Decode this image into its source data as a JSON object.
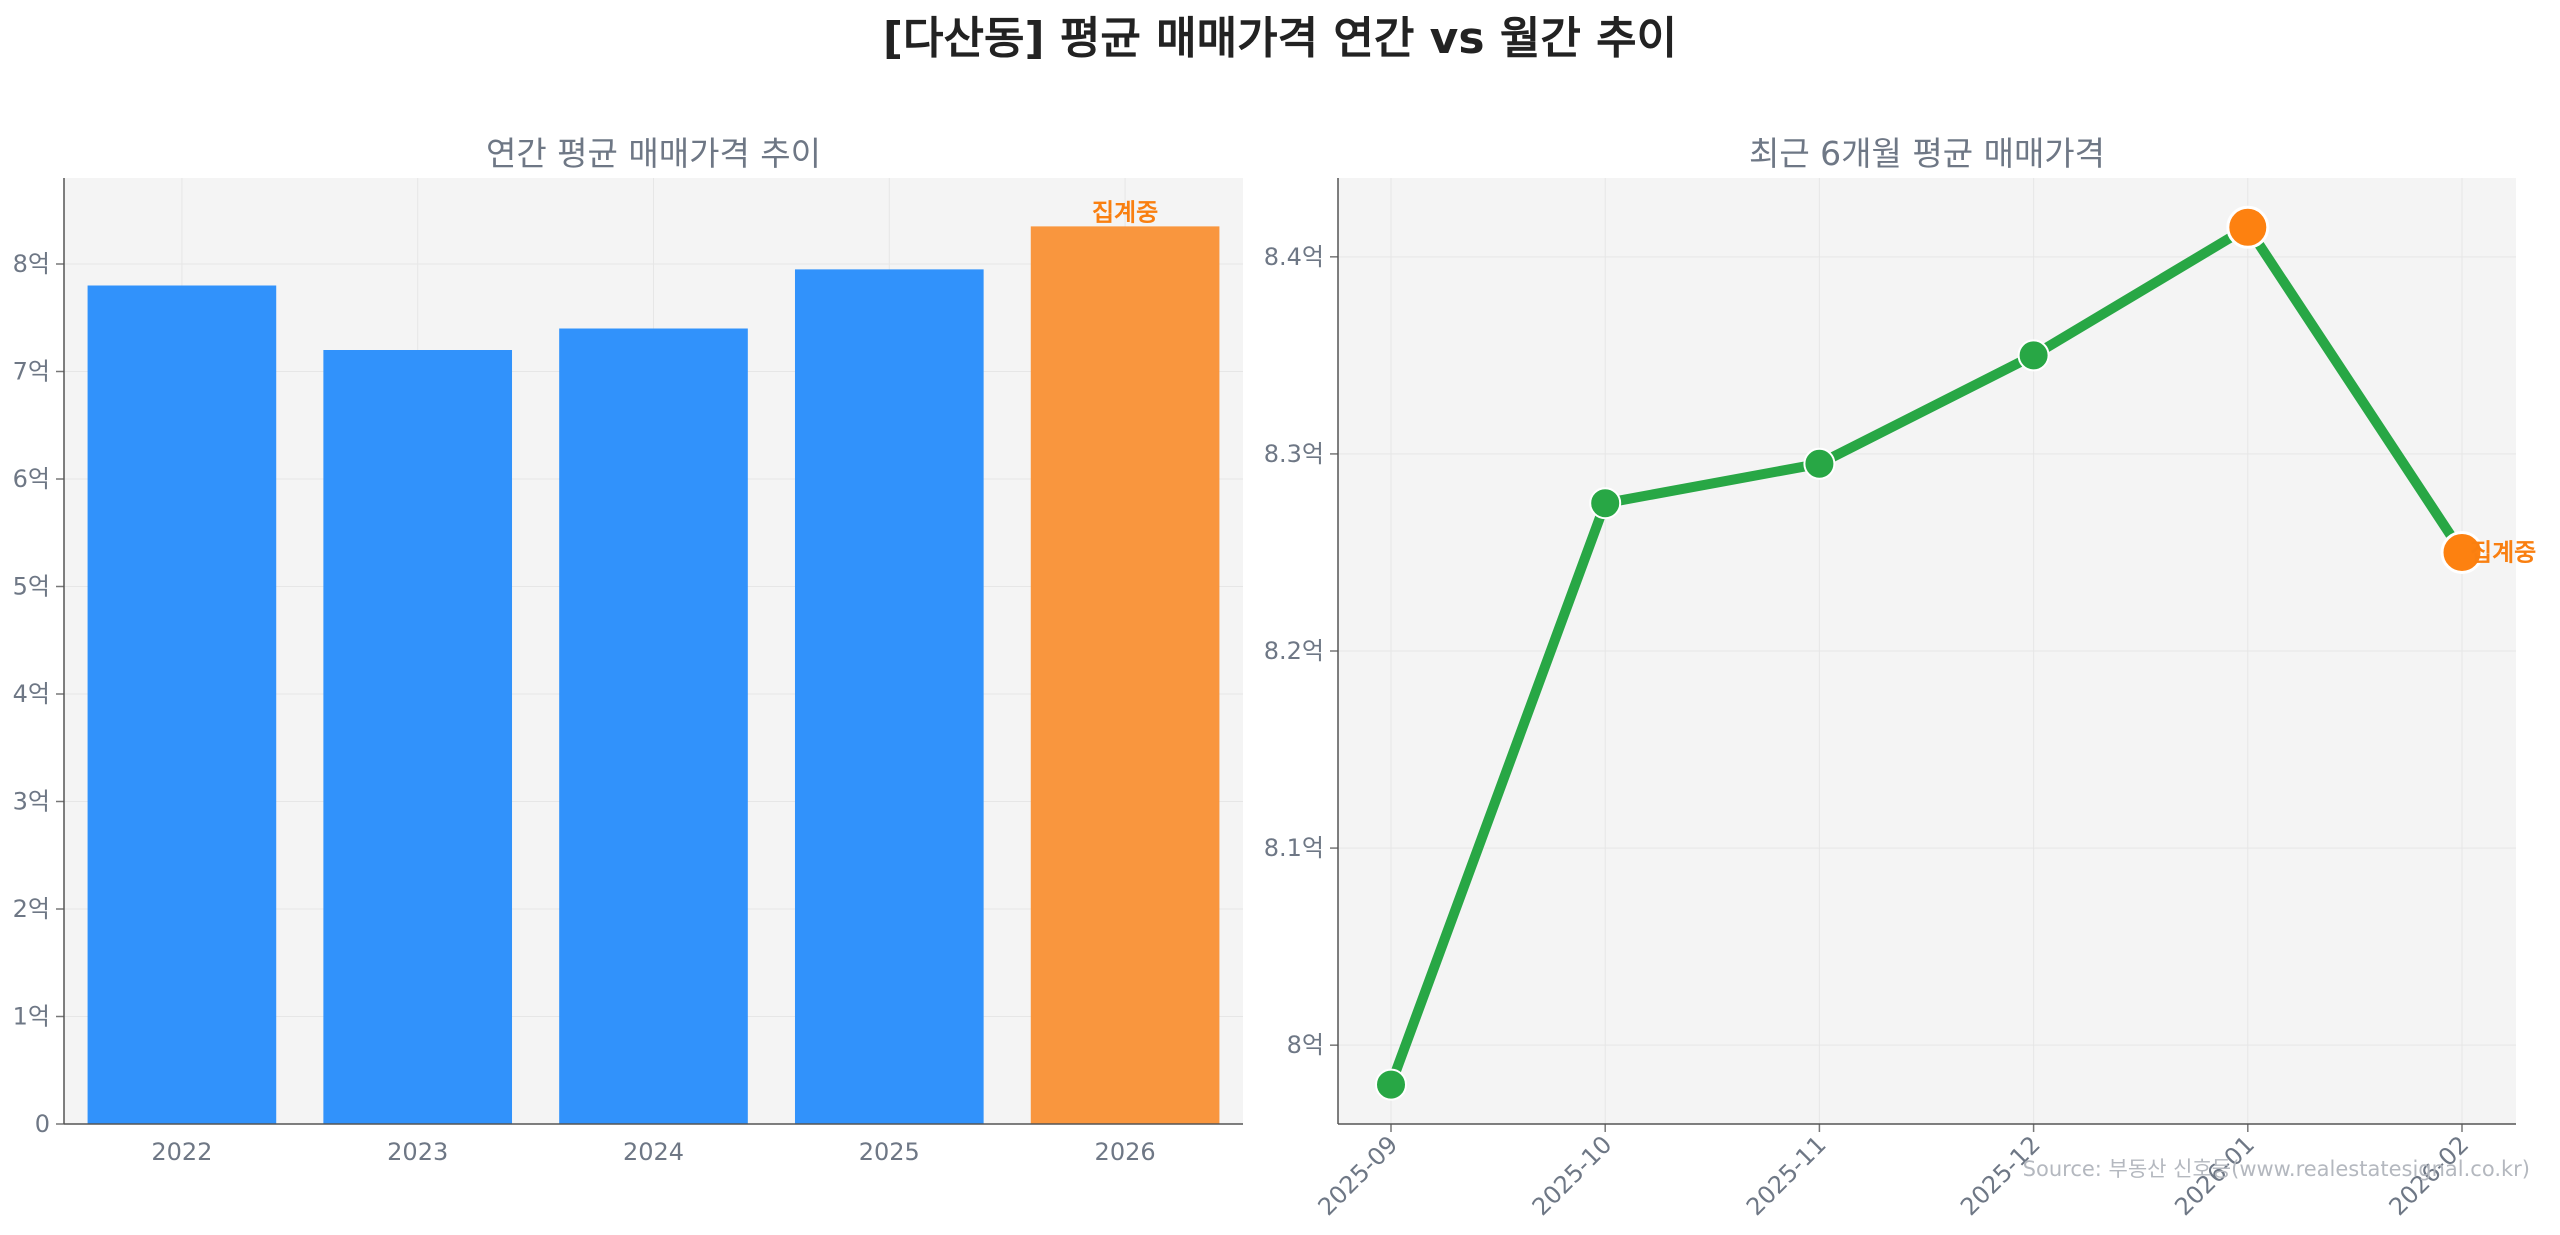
{
  "title": "[다산동] 평균 매매가격 연간 vs 월간 추이",
  "source": "Source: 부동산 신호등(www.realestatesignal.co.kr)",
  "colors": {
    "bar": "#3192fb",
    "bar_highlight": "#f9963e",
    "line": "#28a745",
    "marker_highlight": "#fd8110",
    "panel_bg": "#f4f4f4",
    "grid": "#e6e6e6",
    "text_muted": "#6e7785",
    "status_text": "#f97f10"
  },
  "chart_data": [
    {
      "type": "bar",
      "title": "연간 평균 매매가격 추이",
      "categories": [
        "2022",
        "2023",
        "2024",
        "2025",
        "2026"
      ],
      "values": [
        7.8,
        7.2,
        7.4,
        7.95,
        8.35
      ],
      "unit": "억",
      "ylim": [
        0,
        8.8
      ],
      "yticks": [
        0,
        1,
        2,
        3,
        4,
        5,
        6,
        7,
        8
      ],
      "ytick_labels": [
        "0",
        "1억",
        "2억",
        "3억",
        "4억",
        "5억",
        "6억",
        "7억",
        "8억"
      ],
      "highlight_index": 4,
      "highlight_label": "집계중",
      "grid": true
    },
    {
      "type": "line",
      "title": "최근 6개월 평균 매매가격",
      "x": [
        "2025-09",
        "2025-10",
        "2025-11",
        "2025-12",
        "2026-01",
        "2026-02"
      ],
      "values": [
        7.98,
        8.275,
        8.295,
        8.35,
        8.415,
        8.25
      ],
      "unit": "억",
      "ylim": [
        7.96,
        8.44
      ],
      "yticks": [
        8.0,
        8.1,
        8.2,
        8.3,
        8.4
      ],
      "ytick_labels": [
        "8억",
        "8.1억",
        "8.2억",
        "8.3억",
        "8.4억"
      ],
      "highlight_indices": [
        4,
        5
      ],
      "last_point_label": "집계중",
      "grid": true
    }
  ]
}
